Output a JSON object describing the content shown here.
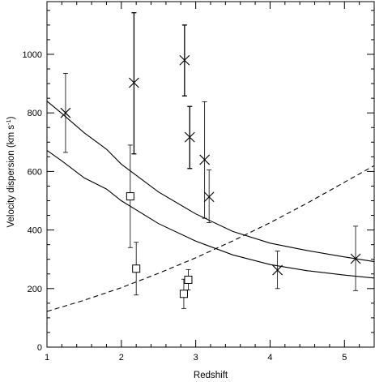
{
  "chart_data": {
    "type": "scatter",
    "title": "",
    "xlabel": "Redshift",
    "ylabel": "Velocity dispersion (km s",
    "ylabel_sup": "-1",
    "ylabel_close": ")",
    "xlim": [
      1.0,
      5.4
    ],
    "ylim": [
      0,
      1180
    ],
    "xticks": [
      {
        "v": 1,
        "label": "1"
      },
      {
        "v": 2,
        "label": "2"
      },
      {
        "v": 3,
        "label": "3"
      },
      {
        "v": 4,
        "label": "4"
      },
      {
        "v": 5,
        "label": "5"
      }
    ],
    "yticks": [
      {
        "v": 0,
        "label": "0"
      },
      {
        "v": 200,
        "label": "200"
      },
      {
        "v": 400,
        "label": "400"
      },
      {
        "v": 600,
        "label": "600"
      },
      {
        "v": 800,
        "label": "800"
      },
      {
        "v": 1000,
        "label": "1000"
      }
    ],
    "grid": false,
    "series": [
      {
        "marker": "x",
        "points": [
          {
            "x": 1.25,
            "y": 800,
            "lo": 665,
            "hi": 935
          },
          {
            "x": 2.17,
            "y": 903,
            "lo": 660,
            "hi": 1142
          },
          {
            "x": 2.85,
            "y": 980,
            "lo": 858,
            "hi": 1100
          },
          {
            "x": 2.92,
            "y": 717,
            "lo": 610,
            "hi": 822
          },
          {
            "x": 3.12,
            "y": 640,
            "lo": 440,
            "hi": 838
          },
          {
            "x": 3.18,
            "y": 513,
            "lo": 425,
            "hi": 605
          },
          {
            "x": 4.1,
            "y": 263,
            "lo": 200,
            "hi": 328
          },
          {
            "x": 5.15,
            "y": 302,
            "lo": 193,
            "hi": 413
          }
        ]
      },
      {
        "marker": "square",
        "points": [
          {
            "x": 2.12,
            "y": 515,
            "lo": 340,
            "hi": 690
          },
          {
            "x": 2.2,
            "y": 268,
            "lo": 178,
            "hi": 358
          },
          {
            "x": 2.84,
            "y": 182,
            "lo": 132,
            "hi": 232
          },
          {
            "x": 2.9,
            "y": 230,
            "lo": 195,
            "hi": 265
          }
        ]
      }
    ],
    "curves": [
      {
        "style": "solid",
        "points": [
          [
            1.0,
            840
          ],
          [
            1.2,
            798
          ],
          [
            1.5,
            732
          ],
          [
            1.8,
            676
          ],
          [
            2.0,
            625
          ],
          [
            2.5,
            530
          ],
          [
            3.0,
            455
          ],
          [
            3.5,
            395
          ],
          [
            4.0,
            355
          ],
          [
            4.5,
            330
          ],
          [
            5.0,
            308
          ],
          [
            5.4,
            292
          ]
        ]
      },
      {
        "style": "solid",
        "points": [
          [
            1.0,
            672
          ],
          [
            1.2,
            636
          ],
          [
            1.5,
            578
          ],
          [
            1.8,
            540
          ],
          [
            2.0,
            500
          ],
          [
            2.5,
            422
          ],
          [
            3.0,
            362
          ],
          [
            3.5,
            315
          ],
          [
            4.0,
            282
          ],
          [
            4.5,
            261
          ],
          [
            5.0,
            246
          ],
          [
            5.4,
            236
          ]
        ]
      },
      {
        "style": "dashed",
        "points": [
          [
            1.0,
            122
          ],
          [
            1.5,
            160
          ],
          [
            2.0,
            203
          ],
          [
            2.5,
            252
          ],
          [
            3.0,
            305
          ],
          [
            3.5,
            363
          ],
          [
            4.0,
            425
          ],
          [
            4.5,
            492
          ],
          [
            5.0,
            563
          ],
          [
            5.4,
            620
          ]
        ]
      }
    ]
  }
}
